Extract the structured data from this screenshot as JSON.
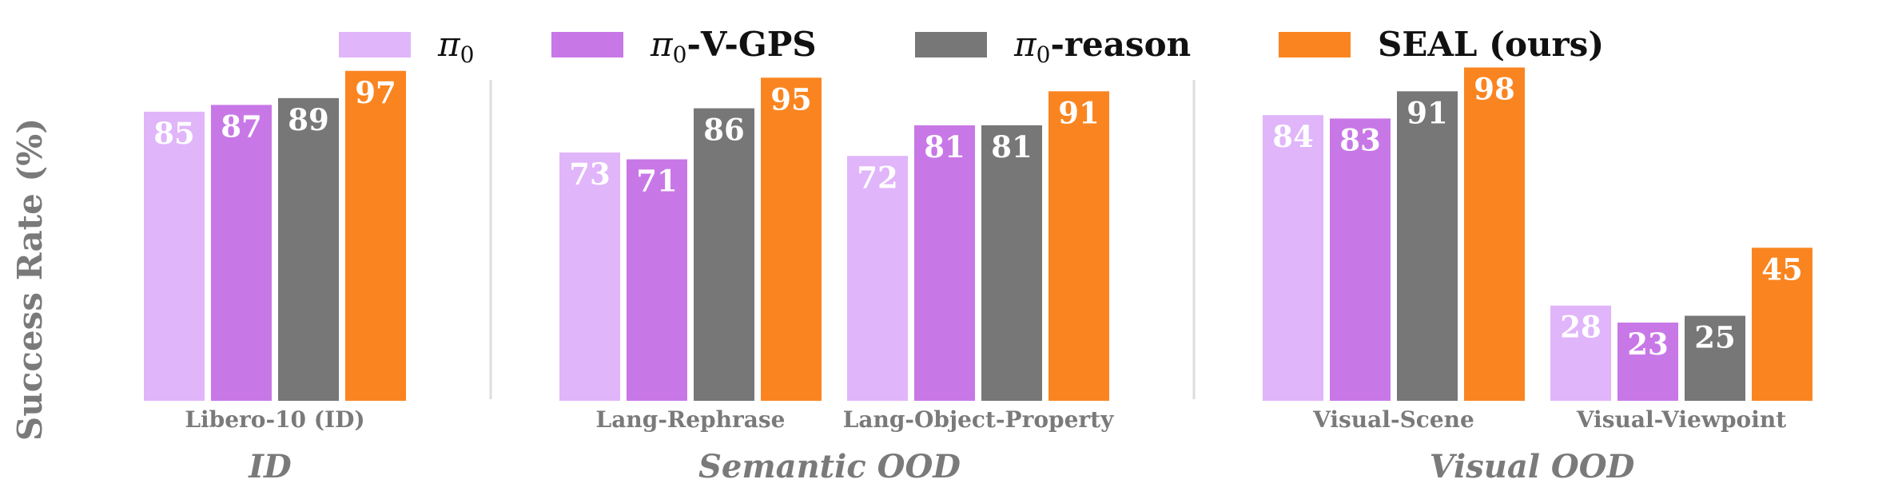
{
  "chart_data": {
    "type": "bar",
    "ylabel": "Success Rate (%)",
    "ylim": [
      0,
      100
    ],
    "grid": false,
    "legend_position": "top",
    "series": [
      {
        "name": "π0",
        "name_base": "π",
        "name_sub": "0",
        "name_suffix": "",
        "color": "#E0B5FA"
      },
      {
        "name": "π0-V-GPS",
        "name_base": "π",
        "name_sub": "0",
        "name_suffix": "-V-GPS",
        "color": "#C878E6"
      },
      {
        "name": "π0-reason",
        "name_base": "π",
        "name_sub": "0",
        "name_suffix": "-reason",
        "color": "#777777"
      },
      {
        "name": "SEAL (ours)",
        "name_base": "SEAL (ours)",
        "name_sub": "",
        "name_suffix": "",
        "color": "#FA8520"
      }
    ],
    "groups": [
      {
        "label": "ID",
        "categories": [
          {
            "label": "Libero-10 (ID)",
            "values": [
              85,
              87,
              89,
              97
            ]
          }
        ]
      },
      {
        "label": "Semantic OOD",
        "categories": [
          {
            "label": "Lang-Rephrase",
            "values": [
              73,
              71,
              86,
              95
            ]
          },
          {
            "label": "Lang-Object-Property",
            "values": [
              72,
              81,
              81,
              91
            ]
          }
        ]
      },
      {
        "label": "Visual OOD",
        "categories": [
          {
            "label": "Visual-Scene",
            "values": [
              84,
              83,
              91,
              98
            ]
          },
          {
            "label": "Visual-Viewpoint",
            "values": [
              28,
              23,
              25,
              45
            ]
          }
        ]
      }
    ],
    "divider_color": "#dddddd"
  }
}
